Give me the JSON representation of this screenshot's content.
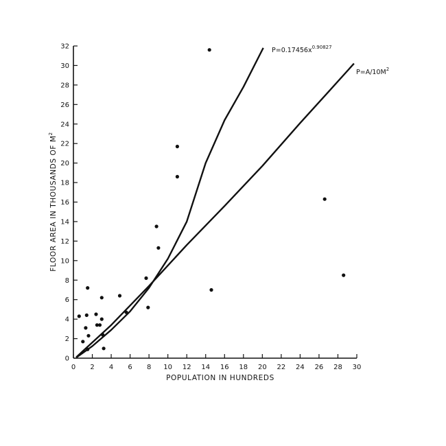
{
  "chart_data": {
    "type": "scatter",
    "title": "",
    "xlabel": "POPULATION IN HUNDREDS",
    "ylabel_main": "FLOOR AREA IN THOUSANDS OF M",
    "ylabel_sup": "2",
    "xlim": [
      0,
      30
    ],
    "ylim": [
      0,
      32
    ],
    "xticks": [
      0,
      2,
      4,
      6,
      8,
      10,
      12,
      14,
      16,
      18,
      20,
      22,
      24,
      26,
      28,
      30
    ],
    "yticks": [
      0,
      2,
      4,
      6,
      8,
      10,
      12,
      14,
      16,
      18,
      20,
      22,
      24,
      26,
      28,
      30,
      32
    ],
    "grid": false,
    "series": [
      {
        "type": "scatter",
        "points": [
          [
            0.6,
            4.3
          ],
          [
            1.0,
            1.7
          ],
          [
            1.3,
            3.1
          ],
          [
            1.4,
            4.4
          ],
          [
            1.5,
            7.2
          ],
          [
            1.5,
            0.9
          ],
          [
            1.6,
            2.3
          ],
          [
            2.4,
            4.5
          ],
          [
            2.5,
            3.4
          ],
          [
            2.8,
            3.4
          ],
          [
            3.0,
            4.0
          ],
          [
            3.0,
            6.2
          ],
          [
            3.1,
            2.4
          ],
          [
            3.2,
            1.0
          ],
          [
            4.9,
            6.4
          ],
          [
            5.6,
            4.7
          ],
          [
            7.7,
            8.2
          ],
          [
            7.9,
            5.2
          ],
          [
            8.8,
            13.5
          ],
          [
            9.0,
            11.3
          ],
          [
            11.0,
            21.7
          ],
          [
            11.0,
            18.6
          ],
          [
            14.4,
            31.6
          ],
          [
            14.6,
            7.0
          ],
          [
            26.6,
            16.3
          ],
          [
            28.6,
            8.5
          ]
        ]
      },
      {
        "type": "line",
        "label_main": "P=0.17456x",
        "label_sup": "0.90827",
        "x": [
          0.3,
          2,
          4,
          6,
          8,
          10,
          12,
          14,
          16,
          18,
          20.1
        ],
        "y": [
          0.06,
          1.23,
          2.9,
          4.8,
          7.2,
          10.2,
          14.0,
          20.0,
          24.4,
          27.8,
          31.8
        ]
      },
      {
        "type": "line",
        "label_main": "P=A/10M",
        "label_sup": "2",
        "x": [
          0.3,
          4,
          8,
          12,
          16,
          20,
          24,
          27,
          29.7
        ],
        "y": [
          0.1,
          3.4,
          7.4,
          11.6,
          15.6,
          19.7,
          24.1,
          27.3,
          30.2
        ]
      }
    ]
  }
}
